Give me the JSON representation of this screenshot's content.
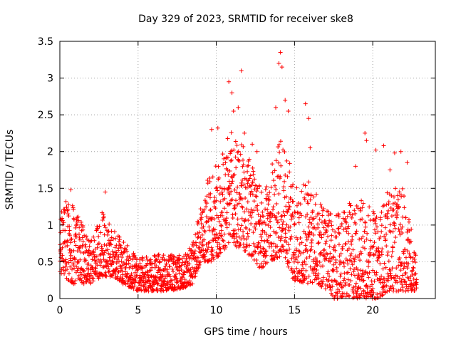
{
  "chart_data": {
    "type": "scatter",
    "title": "Day 329 of 2023, SRMTID for receiver ske8",
    "xlabel": "GPS time / hours",
    "ylabel": "SRMTID / TECUs",
    "xlim": [
      0,
      24
    ],
    "ylim": [
      0,
      3.5
    ],
    "xticks": [
      "0",
      "5",
      "10",
      "15",
      "20"
    ],
    "yticks": [
      "0",
      "0.5",
      "1",
      "1.5",
      "2",
      "2.5",
      "3",
      "3.5"
    ],
    "grid": true,
    "marker": "+",
    "color": "#ff0000",
    "series": [
      {
        "name": "SRMTID",
        "profile": [
          {
            "t": 0.0,
            "lo": 0.35,
            "hi": 1.2
          },
          {
            "t": 0.7,
            "lo": 0.2,
            "hi": 1.45
          },
          {
            "t": 1.2,
            "lo": 0.2,
            "hi": 1.1
          },
          {
            "t": 2.0,
            "lo": 0.2,
            "hi": 0.8
          },
          {
            "t": 2.7,
            "lo": 0.3,
            "hi": 1.2
          },
          {
            "t": 3.2,
            "lo": 0.3,
            "hi": 1.0
          },
          {
            "t": 4.0,
            "lo": 0.2,
            "hi": 0.8
          },
          {
            "t": 5.0,
            "lo": 0.1,
            "hi": 0.55
          },
          {
            "t": 6.0,
            "lo": 0.1,
            "hi": 0.6
          },
          {
            "t": 7.0,
            "lo": 0.1,
            "hi": 0.6
          },
          {
            "t": 8.0,
            "lo": 0.15,
            "hi": 0.6
          },
          {
            "t": 8.5,
            "lo": 0.2,
            "hi": 0.75
          },
          {
            "t": 9.0,
            "lo": 0.5,
            "hi": 1.3
          },
          {
            "t": 9.7,
            "lo": 0.5,
            "hi": 1.8
          },
          {
            "t": 10.3,
            "lo": 0.6,
            "hi": 2.0
          },
          {
            "t": 11.0,
            "lo": 0.7,
            "hi": 2.3
          },
          {
            "t": 12.0,
            "lo": 0.6,
            "hi": 2.0
          },
          {
            "t": 12.8,
            "lo": 0.4,
            "hi": 1.5
          },
          {
            "t": 13.5,
            "lo": 0.5,
            "hi": 1.8
          },
          {
            "t": 14.3,
            "lo": 0.6,
            "hi": 2.3
          },
          {
            "t": 15.0,
            "lo": 0.2,
            "hi": 1.5
          },
          {
            "t": 15.8,
            "lo": 0.2,
            "hi": 1.7
          },
          {
            "t": 16.5,
            "lo": 0.2,
            "hi": 1.4
          },
          {
            "t": 17.5,
            "lo": 0.0,
            "hi": 1.1
          },
          {
            "t": 18.5,
            "lo": 0.0,
            "hi": 1.3
          },
          {
            "t": 19.5,
            "lo": 0.0,
            "hi": 1.4
          },
          {
            "t": 20.3,
            "lo": 0.0,
            "hi": 1.1
          },
          {
            "t": 21.0,
            "lo": 0.1,
            "hi": 1.5
          },
          {
            "t": 22.0,
            "lo": 0.1,
            "hi": 1.5
          },
          {
            "t": 22.8,
            "lo": 0.1,
            "hi": 0.6
          }
        ],
        "outliers": [
          [
            0.7,
            1.48
          ],
          [
            2.9,
            1.45
          ],
          [
            9.7,
            2.3
          ],
          [
            10.1,
            2.32
          ],
          [
            10.8,
            2.95
          ],
          [
            11.0,
            2.8
          ],
          [
            11.1,
            2.55
          ],
          [
            11.6,
            3.1
          ],
          [
            11.4,
            2.6
          ],
          [
            11.8,
            2.25
          ],
          [
            12.3,
            2.1
          ],
          [
            12.6,
            2.0
          ],
          [
            13.8,
            2.6
          ],
          [
            14.1,
            3.35
          ],
          [
            14.0,
            3.2
          ],
          [
            14.2,
            3.15
          ],
          [
            14.4,
            2.7
          ],
          [
            14.6,
            2.55
          ],
          [
            15.7,
            2.65
          ],
          [
            15.9,
            2.45
          ],
          [
            16.0,
            2.05
          ],
          [
            18.9,
            1.8
          ],
          [
            19.5,
            2.25
          ],
          [
            19.6,
            2.15
          ],
          [
            20.2,
            2.02
          ],
          [
            20.7,
            2.08
          ],
          [
            21.4,
            1.98
          ],
          [
            21.8,
            2.0
          ],
          [
            21.1,
            1.75
          ],
          [
            22.2,
            1.85
          ]
        ],
        "sampling": {
          "step_hours": 0.02,
          "points_per_step": 2,
          "seed": 329
        }
      }
    ]
  }
}
